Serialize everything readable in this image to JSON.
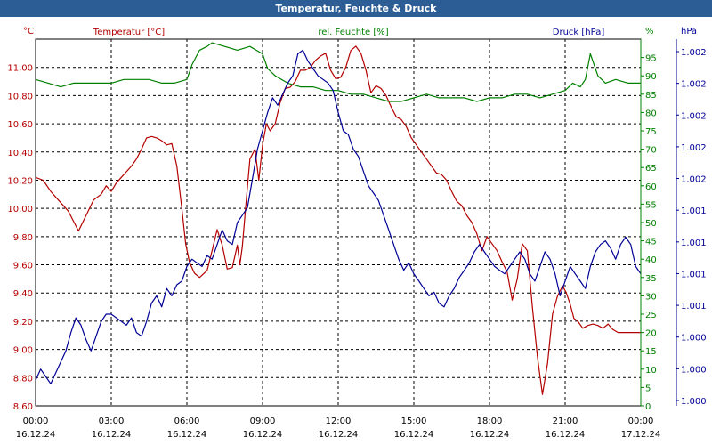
{
  "title": "Temperatur, Feuchte & Druck",
  "colors": {
    "temperature": "#b40000",
    "humidity": "#008000",
    "pressure": "#000096",
    "titlebar": "#2c5d95"
  },
  "chart_data": {
    "type": "line",
    "title": "Temperatur, Feuchte & Druck",
    "grid": true,
    "x_ticks": [
      {
        "time": "00:00",
        "date": "16.12.24"
      },
      {
        "time": "03:00",
        "date": "16.12.24"
      },
      {
        "time": "06:00",
        "date": "16.12.24"
      },
      {
        "time": "09:00",
        "date": "16.12.24"
      },
      {
        "time": "12:00",
        "date": "16.12.24"
      },
      {
        "time": "15:00",
        "date": "16.12.24"
      },
      {
        "time": "18:00",
        "date": "16.12.24"
      },
      {
        "time": "21:00",
        "date": "16.12.24"
      },
      {
        "time": "00:00",
        "date": "17.12.24"
      }
    ],
    "axes": {
      "left": {
        "label": "Temperatur [°C]",
        "unit": "°C",
        "ylim": [
          8.6,
          11.2
        ],
        "ticks": [
          "8,60",
          "8,80",
          "9,00",
          "9,20",
          "9,40",
          "9,60",
          "9,80",
          "10,00",
          "10,20",
          "10,40",
          "10,60",
          "10,80",
          "11,00"
        ]
      },
      "right1": {
        "label": "rel. Feuchte [%]",
        "unit": "%",
        "ylim": [
          0,
          100
        ],
        "ticks": [
          "0",
          "5",
          "10",
          "15",
          "20",
          "25",
          "30",
          "35",
          "40",
          "45",
          "50",
          "55",
          "60",
          "65",
          "70",
          "75",
          "80",
          "85",
          "90",
          "95"
        ]
      },
      "right2": {
        "label": "Druck [hPa]",
        "unit": "hPa",
        "ylim": [
          0,
          100
        ],
        "ticks": [
          "1.000",
          "1.000",
          "1.000",
          "1.001",
          "1.001",
          "1.001",
          "1.001",
          "1.002",
          "1.002",
          "1.002",
          "1.002",
          "1.002"
        ]
      }
    },
    "series": [
      {
        "name": "Temperatur [°C]",
        "axis": "left",
        "x": [
          0,
          0.3,
          0.6,
          1.0,
          1.3,
          1.5,
          1.7,
          2.0,
          2.3,
          2.6,
          2.8,
          3.0,
          3.2,
          3.4,
          3.6,
          3.8,
          4.0,
          4.2,
          4.4,
          4.6,
          4.8,
          5.0,
          5.2,
          5.4,
          5.6,
          5.8,
          5.95,
          6.1,
          6.3,
          6.5,
          6.8,
          7.0,
          7.2,
          7.4,
          7.6,
          7.8,
          8.0,
          8.1,
          8.2,
          8.35,
          8.5,
          8.7,
          8.85,
          9.0,
          9.15,
          9.3,
          9.5,
          9.7,
          9.9,
          10.1,
          10.3,
          10.5,
          10.7,
          10.9,
          11.1,
          11.3,
          11.5,
          11.7,
          11.9,
          12.1,
          12.3,
          12.5,
          12.7,
          12.9,
          13.1,
          13.3,
          13.5,
          13.7,
          13.9,
          14.1,
          14.3,
          14.5,
          14.7,
          14.9,
          15.1,
          15.3,
          15.5,
          15.7,
          15.9,
          16.1,
          16.3,
          16.5,
          16.7,
          16.9,
          17.1,
          17.3,
          17.5,
          17.7,
          17.9,
          18.1,
          18.3,
          18.5,
          18.7,
          18.9,
          19.1,
          19.3,
          19.5,
          19.7,
          19.9,
          20.1,
          20.3,
          20.5,
          20.7,
          20.9,
          21.05,
          21.2,
          21.35,
          21.5,
          21.7,
          21.9,
          22.1,
          22.3,
          22.5,
          22.7,
          22.9,
          23.1,
          23.3,
          23.5,
          23.7,
          23.9,
          24.0
        ],
        "y": [
          10.22,
          10.2,
          10.12,
          10.04,
          9.98,
          9.91,
          9.84,
          9.95,
          10.06,
          10.1,
          10.16,
          10.12,
          10.18,
          10.22,
          10.26,
          10.3,
          10.35,
          10.42,
          10.5,
          10.51,
          10.5,
          10.48,
          10.45,
          10.46,
          10.3,
          10.0,
          9.75,
          9.62,
          9.54,
          9.51,
          9.56,
          9.7,
          9.85,
          9.74,
          9.57,
          9.58,
          9.74,
          9.6,
          9.73,
          10.05,
          10.35,
          10.42,
          10.2,
          10.45,
          10.6,
          10.55,
          10.6,
          10.75,
          10.85,
          10.86,
          10.9,
          10.98,
          10.98,
          11.0,
          11.05,
          11.08,
          11.1,
          10.98,
          10.92,
          10.93,
          11.0,
          11.12,
          11.15,
          11.1,
          10.98,
          10.82,
          10.87,
          10.85,
          10.8,
          10.72,
          10.65,
          10.63,
          10.58,
          10.5,
          10.45,
          10.4,
          10.35,
          10.3,
          10.25,
          10.24,
          10.2,
          10.12,
          10.05,
          10.02,
          9.95,
          9.9,
          9.82,
          9.7,
          9.8,
          9.75,
          9.7,
          9.62,
          9.55,
          9.35,
          9.5,
          9.75,
          9.7,
          9.3,
          8.95,
          8.68,
          8.9,
          9.25,
          9.38,
          9.45,
          9.4,
          9.32,
          9.22,
          9.2,
          9.15,
          9.17,
          9.18,
          9.17,
          9.15,
          9.18,
          9.14,
          9.12,
          9.12,
          9.12,
          9.12,
          9.12,
          9.12
        ]
      },
      {
        "name": "rel. Feuchte [%]",
        "axis": "right1",
        "x": [
          0,
          0.5,
          1.0,
          1.5,
          2.0,
          2.5,
          3.0,
          3.5,
          4.0,
          4.5,
          5.0,
          5.5,
          6.0,
          6.2,
          6.5,
          6.8,
          7.0,
          7.5,
          8.0,
          8.5,
          9.0,
          9.2,
          9.5,
          10.0,
          10.5,
          11.0,
          11.5,
          12.0,
          12.5,
          13.0,
          13.5,
          14.0,
          14.5,
          15.0,
          15.5,
          16.0,
          16.5,
          17.0,
          17.5,
          18.0,
          18.5,
          19.0,
          19.5,
          20.0,
          20.5,
          21.0,
          21.3,
          21.6,
          21.8,
          22.0,
          22.3,
          22.6,
          23.0,
          23.5,
          24.0
        ],
        "y": [
          89,
          88,
          87,
          88,
          88,
          88,
          88,
          89,
          89,
          89,
          88,
          88,
          89,
          93,
          97,
          98,
          99,
          98,
          97,
          98,
          96,
          92,
          90,
          88,
          87,
          87,
          86,
          86,
          85,
          85,
          84,
          83,
          83,
          84,
          85,
          84,
          84,
          84,
          83,
          84,
          84,
          85,
          85,
          84,
          85,
          86,
          88,
          87,
          89,
          96,
          90,
          88,
          89,
          88,
          88
        ]
      },
      {
        "name": "Druck [hPa]",
        "axis": "right2",
        "x": [
          0,
          0.2,
          0.4,
          0.6,
          0.8,
          1.0,
          1.2,
          1.4,
          1.6,
          1.8,
          2.0,
          2.2,
          2.4,
          2.6,
          2.8,
          3.0,
          3.2,
          3.4,
          3.6,
          3.8,
          4.0,
          4.2,
          4.4,
          4.6,
          4.8,
          5.0,
          5.2,
          5.4,
          5.6,
          5.8,
          6.0,
          6.2,
          6.4,
          6.6,
          6.8,
          7.0,
          7.2,
          7.4,
          7.6,
          7.8,
          8.0,
          8.2,
          8.4,
          8.6,
          8.8,
          9.0,
          9.2,
          9.4,
          9.6,
          9.8,
          10.0,
          10.2,
          10.4,
          10.6,
          10.8,
          11.0,
          11.2,
          11.4,
          11.6,
          11.8,
          12.0,
          12.2,
          12.4,
          12.6,
          12.8,
          13.0,
          13.2,
          13.4,
          13.6,
          13.8,
          14.0,
          14.2,
          14.4,
          14.6,
          14.8,
          15.0,
          15.2,
          15.4,
          15.6,
          15.8,
          16.0,
          16.2,
          16.4,
          16.6,
          16.8,
          17.0,
          17.2,
          17.4,
          17.6,
          17.8,
          18.0,
          18.2,
          18.4,
          18.6,
          18.8,
          19.0,
          19.2,
          19.4,
          19.6,
          19.8,
          20.0,
          20.2,
          20.4,
          20.6,
          20.8,
          21.0,
          21.2,
          21.4,
          21.6,
          21.8,
          22.0,
          22.2,
          22.4,
          22.6,
          22.8,
          23.0,
          23.2,
          23.4,
          23.6,
          23.8,
          24.0
        ],
        "y": [
          7,
          10,
          8,
          6,
          9,
          12,
          15,
          20,
          24,
          22,
          18,
          15,
          19,
          23,
          25,
          25,
          24,
          23,
          22,
          24,
          20,
          19,
          23,
          28,
          30,
          27,
          32,
          30,
          33,
          34,
          38,
          40,
          39,
          38,
          41,
          40,
          44,
          48,
          45,
          44,
          50,
          52,
          54,
          62,
          70,
          75,
          80,
          84,
          82,
          85,
          88,
          90,
          96,
          97,
          94,
          92,
          90,
          89,
          88,
          86,
          80,
          75,
          74,
          70,
          68,
          64,
          60,
          58,
          56,
          52,
          48,
          44,
          40,
          37,
          39,
          36,
          34,
          32,
          30,
          31,
          28,
          27,
          30,
          32,
          35,
          37,
          39,
          42,
          44,
          42,
          40,
          38,
          37,
          36,
          38,
          40,
          42,
          40,
          36,
          34,
          38,
          42,
          40,
          36,
          30,
          34,
          38,
          36,
          34,
          32,
          38,
          42,
          44,
          45,
          43,
          40,
          44,
          46,
          44,
          38,
          36
        ]
      }
    ]
  }
}
